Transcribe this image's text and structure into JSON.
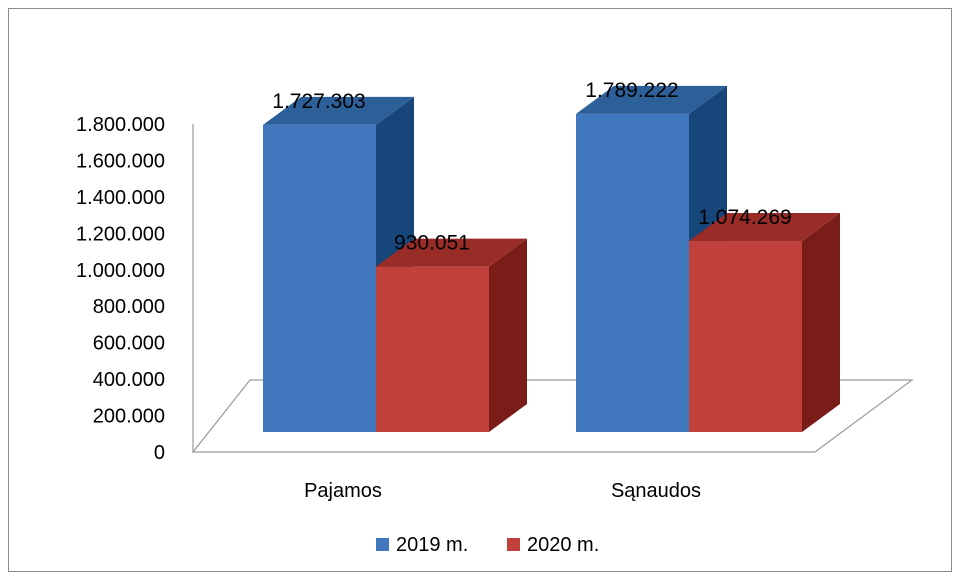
{
  "chart_data": {
    "type": "bar",
    "style": "3d-clustered-column",
    "categories": [
      "Pajamos",
      "Sąnaudos"
    ],
    "series": [
      {
        "name": "2019 m.",
        "values": [
          1727303,
          1789222
        ],
        "labels": [
          "1.727.303",
          "1.789.222"
        ],
        "color": "#4077bd",
        "side_color": "#17467b",
        "top_color": "#2d5f98"
      },
      {
        "name": "2020 m.",
        "values": [
          930051,
          1074269
        ],
        "labels": [
          "930.051",
          "1.074.269"
        ],
        "color": "#c0413b",
        "side_color": "#7a1c18",
        "top_color": "#9a2c27"
      }
    ],
    "ylim": [
      0,
      1800000
    ],
    "yticks": [
      0,
      200000,
      400000,
      600000,
      800000,
      1000000,
      1200000,
      1400000,
      1600000,
      1800000
    ],
    "ytick_labels": [
      "0",
      "200.000",
      "400.000",
      "600.000",
      "800.000",
      "1.000.000",
      "1.200.000",
      "1.400.000",
      "1.600.000",
      "1.800.000"
    ],
    "legend_position": "bottom",
    "grid": false
  }
}
